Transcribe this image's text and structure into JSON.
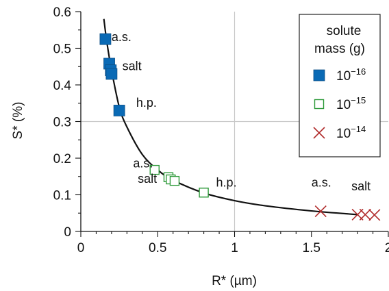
{
  "chart_data": {
    "type": "scatter",
    "xlabel": "R* (µm)",
    "ylabel": "S* (%)",
    "xlim": [
      0,
      2
    ],
    "ylim": [
      0,
      0.6
    ],
    "x_ticks": [
      "0",
      "0.5",
      "1",
      "1.5",
      "2"
    ],
    "y_ticks": [
      "0",
      "0.1",
      "0.2",
      "0.3",
      "0.4",
      "0.5",
      "0.6"
    ],
    "grid": "x=1 and y=0.3 only",
    "legend": {
      "title_line1": "solute",
      "title_line2": "mass (g)",
      "placement": "top-right",
      "entries": [
        {
          "base": "10",
          "exp": "−16",
          "marker": "filled-square",
          "color": "#0a6ab5"
        },
        {
          "base": "10",
          "exp": "−15",
          "marker": "open-square",
          "color": "#2e9a3a"
        },
        {
          "base": "10",
          "exp": "−14",
          "marker": "x",
          "color": "#b02a2a"
        }
      ]
    },
    "curve": {
      "description_none": "",
      "x": [
        0.15,
        0.17,
        0.2,
        0.25,
        0.3,
        0.4,
        0.5,
        0.6,
        0.8,
        1.0,
        1.2,
        1.5,
        1.8
      ],
      "y": [
        0.58,
        0.515,
        0.44,
        0.34,
        0.285,
        0.21,
        0.168,
        0.14,
        0.105,
        0.084,
        0.07,
        0.056,
        0.046
      ]
    },
    "series": [
      {
        "mass_exp": "−16",
        "points": [
          {
            "x": 0.16,
            "y": 0.525
          },
          {
            "x": 0.185,
            "y": 0.458
          },
          {
            "x": 0.195,
            "y": 0.44
          },
          {
            "x": 0.2,
            "y": 0.43
          },
          {
            "x": 0.25,
            "y": 0.33
          }
        ]
      },
      {
        "mass_exp": "−15",
        "points": [
          {
            "x": 0.48,
            "y": 0.168
          },
          {
            "x": 0.57,
            "y": 0.148
          },
          {
            "x": 0.585,
            "y": 0.142
          },
          {
            "x": 0.61,
            "y": 0.138
          },
          {
            "x": 0.8,
            "y": 0.106
          }
        ]
      },
      {
        "mass_exp": "−14",
        "points": [
          {
            "x": 1.56,
            "y": 0.055
          },
          {
            "x": 1.8,
            "y": 0.046
          },
          {
            "x": 1.85,
            "y": 0.046
          },
          {
            "x": 1.91,
            "y": 0.045
          }
        ]
      }
    ],
    "annotations": [
      {
        "text": "a.s.",
        "x": 0.2,
        "y": 0.52
      },
      {
        "text": "salt",
        "x": 0.27,
        "y": 0.44
      },
      {
        "text": "h.p.",
        "x": 0.36,
        "y": 0.34
      },
      {
        "text": "a.s.",
        "x": 0.34,
        "y": 0.175
      },
      {
        "text": "salt",
        "x": 0.37,
        "y": 0.133
      },
      {
        "text": "h.p.",
        "x": 0.88,
        "y": 0.122
      },
      {
        "text": "a.s.",
        "x": 1.5,
        "y": 0.122
      },
      {
        "text": "salt",
        "x": 1.76,
        "y": 0.112
      }
    ]
  }
}
